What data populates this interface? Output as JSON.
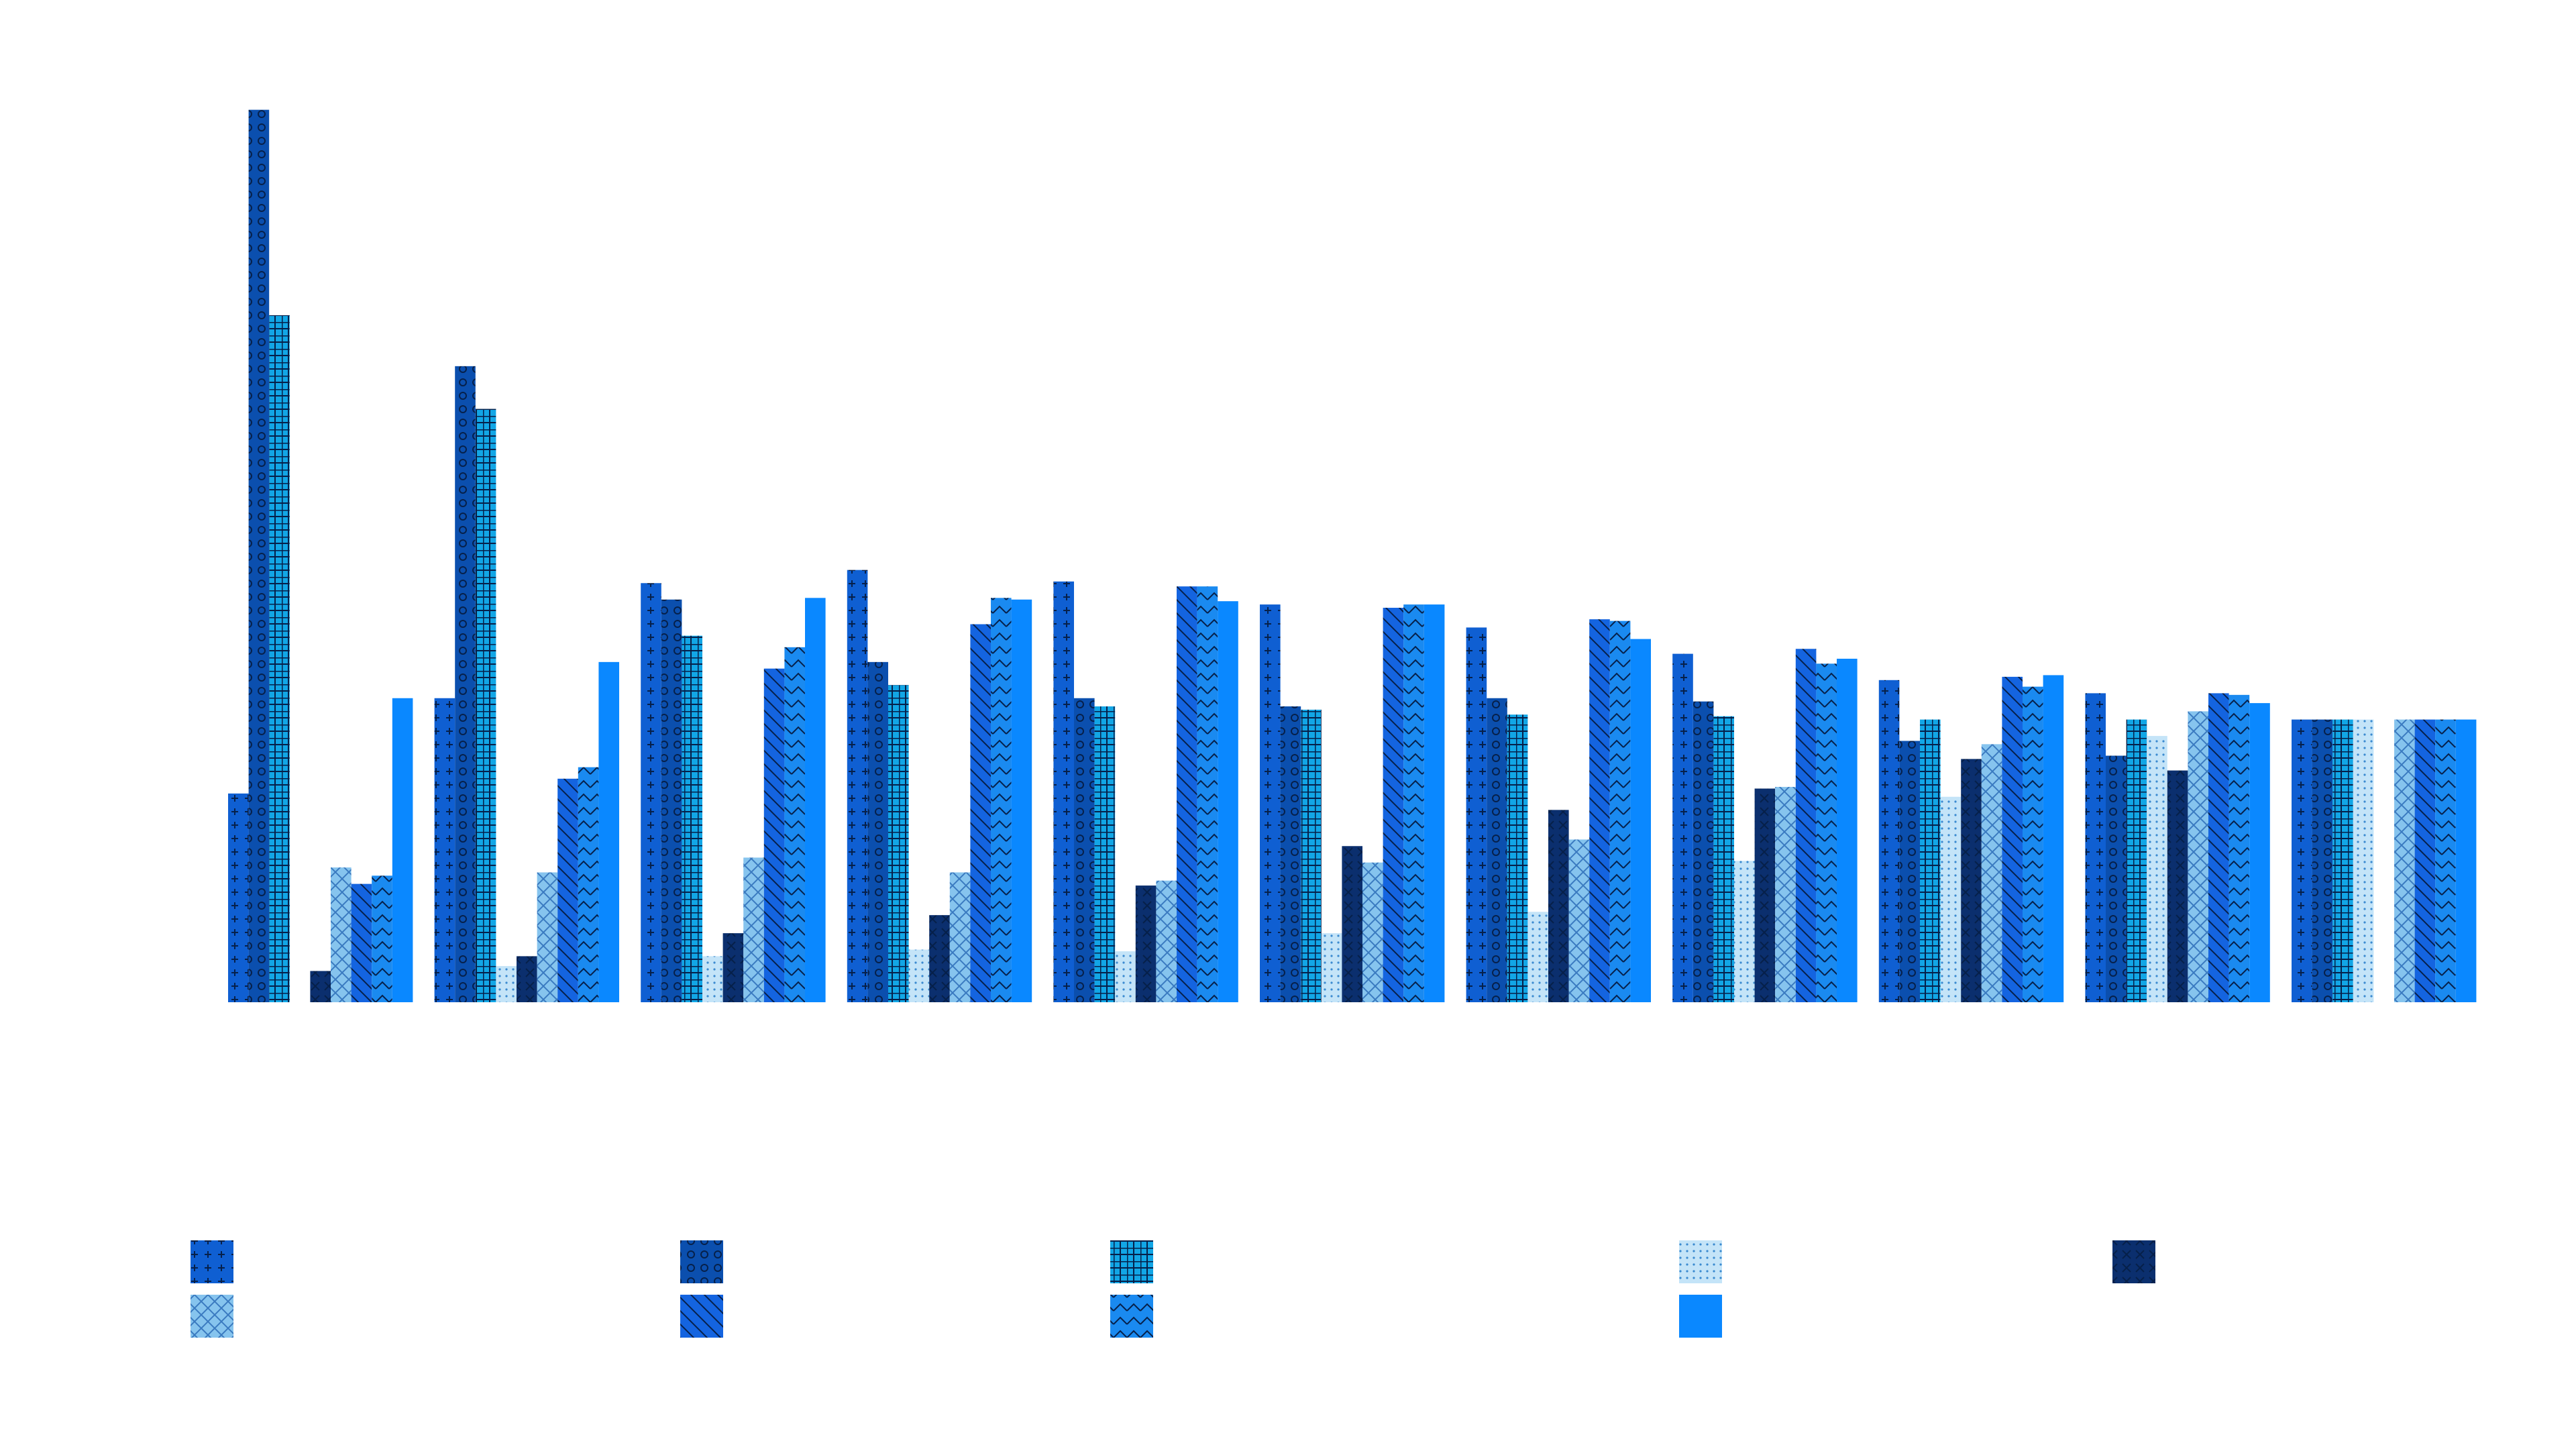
{
  "chart_data": {
    "type": "bar",
    "categories": [
      null,
      null,
      null,
      null,
      null,
      null,
      null,
      null,
      null,
      null,
      null
    ],
    "series": [
      {
        "color": "#0f5fd2",
        "pattern": "plus",
        "values": [
          127,
          185,
          255,
          263,
          256,
          242,
          228,
          212,
          196,
          188,
          172
        ]
      },
      {
        "color": "#0b4fae",
        "pattern": "circle",
        "values": [
          543,
          387,
          245,
          207,
          185,
          180,
          185,
          183,
          159,
          150,
          172
        ]
      },
      {
        "color": "#12a6e6",
        "pattern": "grid",
        "values": [
          418,
          361,
          223,
          193,
          180,
          178,
          175,
          174,
          172,
          172,
          172
        ]
      },
      {
        "color": "#c4e4f8",
        "pattern": "dots",
        "values": [
          0,
          22,
          28,
          32,
          31,
          42,
          55,
          86,
          125,
          162,
          172
        ]
      },
      {
        "color": "#0b2f6e",
        "pattern": "x",
        "values": [
          19,
          28,
          42,
          53,
          71,
          95,
          117,
          130,
          148,
          141,
          0
        ]
      },
      {
        "color": "#86c4ee",
        "pattern": "crosshatch",
        "values": [
          82,
          79,
          88,
          79,
          74,
          85,
          99,
          131,
          157,
          177,
          172
        ]
      },
      {
        "color": "#1464e0",
        "pattern": "diagonal",
        "values": [
          72,
          136,
          203,
          230,
          253,
          240,
          233,
          215,
          198,
          188,
          172
        ]
      },
      {
        "color": "#1a8af0",
        "pattern": "zigzag",
        "values": [
          77,
          143,
          216,
          246,
          253,
          242,
          232,
          206,
          192,
          187,
          172
        ]
      },
      {
        "color": "#0a88ff",
        "pattern": "none",
        "values": [
          185,
          207,
          246,
          245,
          244,
          242,
          221,
          209,
          199,
          182,
          172
        ]
      }
    ],
    "ylim": [
      0,
      560
    ]
  }
}
